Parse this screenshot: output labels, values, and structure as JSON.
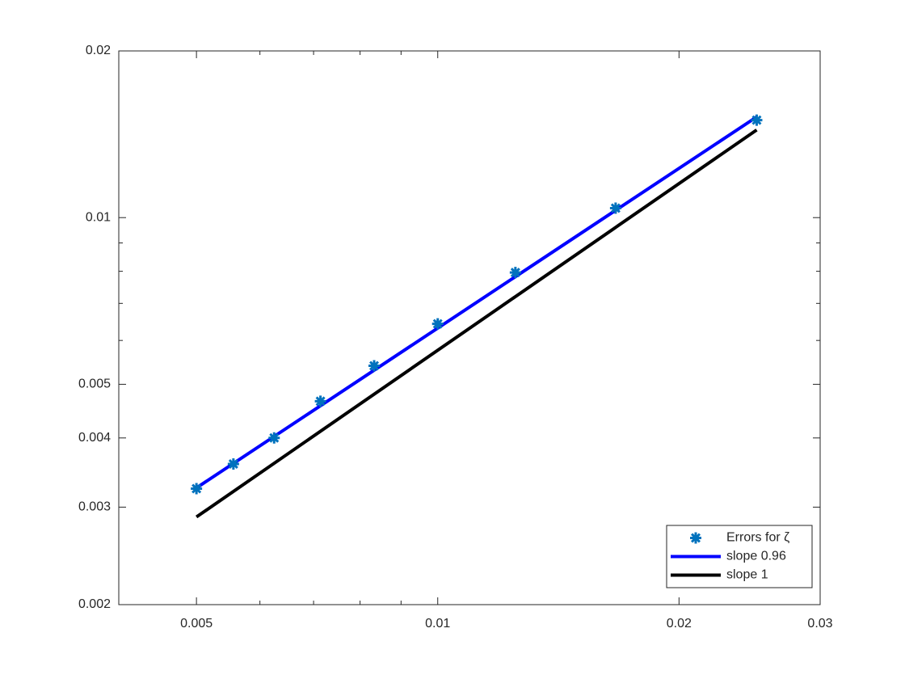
{
  "chart_data": {
    "type": "line",
    "xscale": "log",
    "yscale": "log",
    "xlim": [
      0.004,
      0.03
    ],
    "xticks": [
      0.005,
      0.01,
      0.02,
      0.03
    ],
    "xminorticks": [
      0.006,
      0.007,
      0.008,
      0.009
    ],
    "ylim": [
      0.002,
      0.02
    ],
    "yticks": [
      0.002,
      0.003,
      0.004,
      0.005,
      0.01,
      0.02
    ],
    "yminorticks": [
      0.006,
      0.007,
      0.008,
      0.009
    ],
    "grid": false,
    "legend": "lower right",
    "series": [
      {
        "name": "Errors for ζ",
        "mode": "markers",
        "color": "#0072bd",
        "x": [
          0.005,
          0.00556,
          0.00625,
          0.00714,
          0.00833,
          0.01,
          0.0125,
          0.01667,
          0.025
        ],
        "values": [
          0.00324,
          0.00359,
          0.004,
          0.00466,
          0.0054,
          0.00643,
          0.00796,
          0.0104,
          0.015
        ]
      },
      {
        "name": "slope 0.96",
        "mode": "lines",
        "color": "#0000ff",
        "x": [
          0.005,
          0.025
        ],
        "values": [
          0.00325,
          0.0152
        ]
      },
      {
        "name": "slope 1",
        "mode": "lines",
        "color": "#000000",
        "x": [
          0.005,
          0.025
        ],
        "values": [
          0.00288,
          0.0144
        ]
      }
    ]
  }
}
